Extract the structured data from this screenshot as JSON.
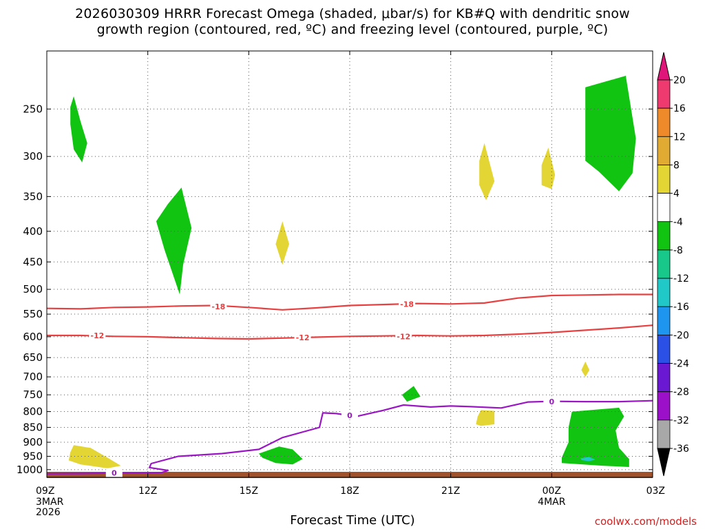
{
  "title_line1": "2026030309 HRRR Forecast Omega (shaded, μbar/s) for KB#Q with dendritic snow",
  "title_line2": "growth region (contoured, red, ºC) and freezing level (contoured, purple, ºC)",
  "xlabel": "Forecast Time (UTC)",
  "credit": "coolwx.com/models",
  "chart_data": {
    "type": "time-height cross section",
    "x_ticks": [
      {
        "hour": 9,
        "label": "09Z",
        "sub": [
          "3MAR",
          "2026"
        ]
      },
      {
        "hour": 12,
        "label": "12Z",
        "sub": []
      },
      {
        "hour": 15,
        "label": "15Z",
        "sub": []
      },
      {
        "hour": 18,
        "label": "18Z",
        "sub": []
      },
      {
        "hour": 21,
        "label": "21Z",
        "sub": []
      },
      {
        "hour": 24,
        "label": "00Z",
        "sub": [
          "4MAR"
        ]
      },
      {
        "hour": 27,
        "label": "03Z",
        "sub": []
      }
    ],
    "xlim": [
      9,
      27
    ],
    "y_ticks": [
      250,
      300,
      350,
      400,
      450,
      500,
      550,
      600,
      650,
      700,
      750,
      800,
      850,
      900,
      950,
      1000
    ],
    "ylim": [
      200,
      1030
    ],
    "colorbar": {
      "labels": [
        "20",
        "16",
        "12",
        "8",
        "4",
        "-4",
        "-8",
        "-12",
        "-16",
        "-20",
        "-24",
        "-28",
        "-32",
        "-36"
      ],
      "colors": [
        "#ee3a6e",
        "#ef8a2a",
        "#e1ab33",
        "#e3d534",
        "#ffffff",
        "#12c412",
        "#17c88a",
        "#20c8c8",
        "#1e96f0",
        "#2a50e6",
        "#6a18d2",
        "#9b10c8",
        "#a8a8a8"
      ],
      "top_color": "#e0157a",
      "bottom_color": "#000000"
    },
    "contours": [
      {
        "name": "-18",
        "color": "#e84040",
        "points": [
          [
            9,
            538
          ],
          [
            10,
            539
          ],
          [
            11,
            536
          ],
          [
            12,
            535
          ],
          [
            13,
            533
          ],
          [
            14,
            532
          ],
          [
            15,
            536
          ],
          [
            16,
            541
          ],
          [
            17,
            537
          ],
          [
            18,
            532
          ],
          [
            19,
            530
          ],
          [
            20,
            528
          ],
          [
            21,
            529
          ],
          [
            22,
            527
          ],
          [
            23,
            517
          ],
          [
            24,
            512
          ],
          [
            25,
            511
          ],
          [
            26,
            510
          ],
          [
            27,
            510
          ]
        ],
        "labels": [
          [
            14.1,
            534
          ],
          [
            19.7,
            529
          ]
        ]
      },
      {
        "name": "-12",
        "color": "#e84040",
        "points": [
          [
            9,
            597
          ],
          [
            10,
            597
          ],
          [
            11,
            599
          ],
          [
            12,
            600
          ],
          [
            13,
            602
          ],
          [
            14,
            604
          ],
          [
            15,
            605
          ],
          [
            16,
            603
          ],
          [
            17,
            601
          ],
          [
            18,
            599
          ],
          [
            19,
            598
          ],
          [
            20,
            597
          ],
          [
            21,
            598
          ],
          [
            22,
            597
          ],
          [
            23,
            594
          ],
          [
            24,
            590
          ],
          [
            25,
            585
          ],
          [
            26,
            580
          ],
          [
            27,
            574
          ]
        ],
        "labels": [
          [
            10.5,
            597
          ],
          [
            16.6,
            602
          ],
          [
            19.6,
            599
          ]
        ]
      },
      {
        "name": "0",
        "color": "#9a16c4",
        "points": [
          [
            9,
            1016
          ],
          [
            10,
            1015
          ],
          [
            11,
            1013
          ],
          [
            11.8,
            1013
          ],
          [
            12.4,
            1012
          ],
          [
            12.6,
            1003
          ],
          [
            12.05,
            992
          ],
          [
            12.1,
            977
          ],
          [
            12.9,
            950
          ],
          [
            14.2,
            940
          ],
          [
            15.3,
            925
          ],
          [
            16.0,
            884
          ],
          [
            17.1,
            850
          ],
          [
            17.2,
            804
          ],
          [
            17.6,
            806
          ],
          [
            18.2,
            815
          ],
          [
            19.0,
            796
          ],
          [
            19.6,
            780
          ],
          [
            20.4,
            786
          ],
          [
            21.0,
            783
          ],
          [
            21.6,
            785
          ],
          [
            22.5,
            789
          ],
          [
            23.3,
            771
          ],
          [
            24.0,
            769
          ],
          [
            25.0,
            770
          ],
          [
            26.0,
            770
          ],
          [
            27,
            767
          ]
        ],
        "labels": [
          [
            18.0,
            812
          ],
          [
            11.0,
            1013
          ],
          [
            24.0,
            770
          ]
        ]
      }
    ],
    "shaded_regions": [
      {
        "name": "omega-neg-1",
        "value_band": "-8 to -4",
        "points": [
          [
            9.8,
            238
          ],
          [
            10.0,
            262
          ],
          [
            10.2,
            285
          ],
          [
            10.05,
            307
          ],
          [
            9.8,
            292
          ],
          [
            9.7,
            265
          ],
          [
            9.7,
            248
          ]
        ]
      },
      {
        "name": "omega-neg-2",
        "value_band": "-8 to -4",
        "points": [
          [
            13.0,
            338
          ],
          [
            13.3,
            395
          ],
          [
            13.05,
            455
          ],
          [
            12.95,
            510
          ],
          [
            12.5,
            430
          ],
          [
            12.25,
            385
          ],
          [
            12.6,
            360
          ]
        ]
      },
      {
        "name": "omega-neg-3",
        "value_band": "-8 to -4",
        "points": [
          [
            15.3,
            940
          ],
          [
            15.9,
            915
          ],
          [
            16.3,
            925
          ],
          [
            16.6,
            960
          ],
          [
            16.3,
            980
          ],
          [
            15.8,
            975
          ],
          [
            15.4,
            955
          ]
        ]
      },
      {
        "name": "omega-neg-4",
        "value_band": "-8 to -4",
        "points": [
          [
            19.9,
            725
          ],
          [
            20.1,
            755
          ],
          [
            19.7,
            770
          ],
          [
            19.55,
            750
          ]
        ]
      },
      {
        "name": "omega-neg-5",
        "value_band": "-8 to -4",
        "points": [
          [
            25.0,
            230
          ],
          [
            26.2,
            220
          ],
          [
            26.5,
            280
          ],
          [
            26.4,
            320
          ],
          [
            26.0,
            343
          ],
          [
            25.4,
            318
          ],
          [
            25.0,
            305
          ]
        ]
      },
      {
        "name": "omega-neg-6",
        "value_band": "-8 to -4",
        "points": [
          [
            24.6,
            800
          ],
          [
            26.0,
            788
          ],
          [
            26.15,
            815
          ],
          [
            25.9,
            860
          ],
          [
            26.0,
            920
          ],
          [
            26.3,
            960
          ],
          [
            26.3,
            990
          ],
          [
            25.5,
            985
          ],
          [
            24.3,
            975
          ],
          [
            24.3,
            955
          ],
          [
            24.5,
            900
          ],
          [
            24.5,
            850
          ]
        ]
      },
      {
        "name": "omega-neg-7",
        "value_band": "-12 to -8",
        "points": [
          [
            24.85,
            958
          ],
          [
            25.1,
            952
          ],
          [
            25.3,
            962
          ],
          [
            25.1,
            968
          ],
          [
            24.9,
            964
          ]
        ]
      },
      {
        "name": "omega-pos-1",
        "value_band": "4 to 8",
        "points": [
          [
            9.8,
            910
          ],
          [
            10.3,
            920
          ],
          [
            10.8,
            955
          ],
          [
            11.2,
            985
          ],
          [
            10.8,
            995
          ],
          [
            10.0,
            980
          ],
          [
            9.65,
            965
          ],
          [
            9.7,
            935
          ]
        ]
      },
      {
        "name": "omega-pos-2",
        "value_band": "4 to 8",
        "points": [
          [
            16.0,
            385
          ],
          [
            16.2,
            420
          ],
          [
            16.0,
            455
          ],
          [
            15.8,
            420
          ]
        ]
      },
      {
        "name": "omega-pos-3",
        "value_band": "4 to 8",
        "points": [
          [
            22.0,
            285
          ],
          [
            22.3,
            330
          ],
          [
            22.05,
            355
          ],
          [
            21.85,
            335
          ],
          [
            21.85,
            305
          ]
        ]
      },
      {
        "name": "omega-pos-4",
        "value_band": "4 to 8",
        "points": [
          [
            23.9,
            290
          ],
          [
            24.1,
            322
          ],
          [
            24.0,
            340
          ],
          [
            23.7,
            335
          ],
          [
            23.7,
            310
          ]
        ]
      },
      {
        "name": "omega-pos-5",
        "value_band": "4 to 8",
        "points": [
          [
            25.0,
            660
          ],
          [
            25.12,
            682
          ],
          [
            25.0,
            700
          ],
          [
            24.88,
            682
          ]
        ]
      },
      {
        "name": "omega-pos-6",
        "value_band": "4 to 8",
        "points": [
          [
            21.9,
            795
          ],
          [
            22.3,
            798
          ],
          [
            22.3,
            840
          ],
          [
            21.9,
            845
          ],
          [
            21.75,
            840
          ],
          [
            21.8,
            815
          ]
        ]
      }
    ]
  }
}
